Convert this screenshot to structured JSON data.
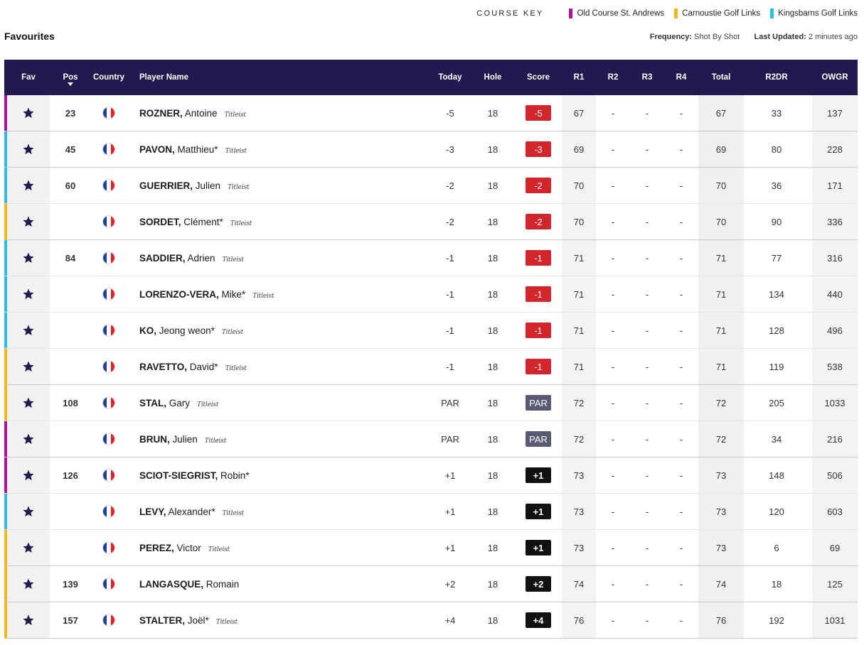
{
  "course_key": {
    "title": "COURSE KEY",
    "items": [
      {
        "label": "Old Course St. Andrews",
        "color": "#b3139b"
      },
      {
        "label": "Carnoustie Golf Links",
        "color": "#f3b51b"
      },
      {
        "label": "Kingsbarns Golf Links",
        "color": "#2bbde8"
      }
    ]
  },
  "page_title": "Favourites",
  "frequency": {
    "label": "Frequency:",
    "value": "Shot By Shot"
  },
  "last_updated": {
    "label": "Last Updated:",
    "value": "2 minutes ago"
  },
  "columns": {
    "fav": "Fav",
    "pos": "Pos",
    "country": "Country",
    "player": "Player Name",
    "today": "Today",
    "hole": "Hole",
    "score": "Score",
    "r1": "R1",
    "r2": "R2",
    "r3": "R3",
    "r4": "R4",
    "total": "Total",
    "r2dr": "R2DR",
    "owgr": "OWGR"
  },
  "rows": [
    {
      "pos": "23",
      "surname": "ROZNER,",
      "first": "Antoine",
      "sponsor": "Titleist",
      "course": 0,
      "today": "-5",
      "hole": "18",
      "score": "-5",
      "r1": "67",
      "r2": "-",
      "r3": "-",
      "r4": "-",
      "total": "67",
      "r2dr": "33",
      "owgr": "137",
      "grp": true
    },
    {
      "pos": "45",
      "surname": "PAVON,",
      "first": "Matthieu*",
      "sponsor": "Titleist",
      "course": 2,
      "today": "-3",
      "hole": "18",
      "score": "-3",
      "r1": "69",
      "r2": "-",
      "r3": "-",
      "r4": "-",
      "total": "69",
      "r2dr": "80",
      "owgr": "228",
      "grp": true
    },
    {
      "pos": "60",
      "surname": "GUERRIER,",
      "first": "Julien",
      "sponsor": "Titleist",
      "course": 2,
      "today": "-2",
      "hole": "18",
      "score": "-2",
      "r1": "70",
      "r2": "-",
      "r3": "-",
      "r4": "-",
      "total": "70",
      "r2dr": "36",
      "owgr": "171",
      "grp": false
    },
    {
      "pos": "",
      "surname": "SORDET,",
      "first": "Clément*",
      "sponsor": "Titleist",
      "course": 1,
      "today": "-2",
      "hole": "18",
      "score": "-2",
      "r1": "70",
      "r2": "-",
      "r3": "-",
      "r4": "-",
      "total": "70",
      "r2dr": "90",
      "owgr": "336",
      "grp": true
    },
    {
      "pos": "84",
      "surname": "SADDIER,",
      "first": "Adrien",
      "sponsor": "Titleist",
      "course": 2,
      "today": "-1",
      "hole": "18",
      "score": "-1",
      "r1": "71",
      "r2": "-",
      "r3": "-",
      "r4": "-",
      "total": "71",
      "r2dr": "77",
      "owgr": "316",
      "grp": false
    },
    {
      "pos": "",
      "surname": "LORENZO-VERA,",
      "first": "Mike*",
      "sponsor": "Titleist",
      "course": 2,
      "today": "-1",
      "hole": "18",
      "score": "-1",
      "r1": "71",
      "r2": "-",
      "r3": "-",
      "r4": "-",
      "total": "71",
      "r2dr": "134",
      "owgr": "440",
      "grp": false
    },
    {
      "pos": "",
      "surname": "KO,",
      "first": "Jeong weon*",
      "sponsor": "Titleist",
      "course": 2,
      "today": "-1",
      "hole": "18",
      "score": "-1",
      "r1": "71",
      "r2": "-",
      "r3": "-",
      "r4": "-",
      "total": "71",
      "r2dr": "128",
      "owgr": "496",
      "grp": false
    },
    {
      "pos": "",
      "surname": "RAVETTO,",
      "first": "David*",
      "sponsor": "Titleist",
      "course": 1,
      "today": "-1",
      "hole": "18",
      "score": "-1",
      "r1": "71",
      "r2": "-",
      "r3": "-",
      "r4": "-",
      "total": "71",
      "r2dr": "119",
      "owgr": "538",
      "grp": true
    },
    {
      "pos": "108",
      "surname": "STAL,",
      "first": "Gary",
      "sponsor": "Titleist",
      "course": 1,
      "today": "PAR",
      "hole": "18",
      "score": "PAR",
      "r1": "72",
      "r2": "-",
      "r3": "-",
      "r4": "-",
      "total": "72",
      "r2dr": "205",
      "owgr": "1033",
      "grp": false
    },
    {
      "pos": "",
      "surname": "BRUN,",
      "first": "Julien",
      "sponsor": "Titleist",
      "course": 0,
      "today": "PAR",
      "hole": "18",
      "score": "PAR",
      "r1": "72",
      "r2": "-",
      "r3": "-",
      "r4": "-",
      "total": "72",
      "r2dr": "34",
      "owgr": "216",
      "grp": true
    },
    {
      "pos": "126",
      "surname": "SCIOT-SIEGRIST,",
      "first": "Robin*",
      "sponsor": "",
      "course": 0,
      "today": "+1",
      "hole": "18",
      "score": "+1",
      "r1": "73",
      "r2": "-",
      "r3": "-",
      "r4": "-",
      "total": "73",
      "r2dr": "148",
      "owgr": "506",
      "grp": false
    },
    {
      "pos": "",
      "surname": "LEVY,",
      "first": "Alexander*",
      "sponsor": "Titleist",
      "course": 2,
      "today": "+1",
      "hole": "18",
      "score": "+1",
      "r1": "73",
      "r2": "-",
      "r3": "-",
      "r4": "-",
      "total": "73",
      "r2dr": "120",
      "owgr": "603",
      "grp": false
    },
    {
      "pos": "",
      "surname": "PEREZ,",
      "first": "Victor",
      "sponsor": "Titleist",
      "course": 1,
      "today": "+1",
      "hole": "18",
      "score": "+1",
      "r1": "73",
      "r2": "-",
      "r3": "-",
      "r4": "-",
      "total": "73",
      "r2dr": "6",
      "owgr": "69",
      "grp": true
    },
    {
      "pos": "139",
      "surname": "LANGASQUE,",
      "first": "Romain",
      "sponsor": "",
      "course": 1,
      "today": "+2",
      "hole": "18",
      "score": "+2",
      "r1": "74",
      "r2": "-",
      "r3": "-",
      "r4": "-",
      "total": "74",
      "r2dr": "18",
      "owgr": "125",
      "grp": true
    },
    {
      "pos": "157",
      "surname": "STALTER,",
      "first": "Joël*",
      "sponsor": "Titleist",
      "course": 1,
      "today": "+4",
      "hole": "18",
      "score": "+4",
      "r1": "76",
      "r2": "-",
      "r3": "-",
      "r4": "-",
      "total": "76",
      "r2dr": "192",
      "owgr": "1031",
      "grp": true
    }
  ],
  "flag_colors": [
    "#1f3f99",
    "#ffffff",
    "#e2202a"
  ],
  "icons": {
    "fav": "star-icon",
    "country": "france-flag-icon",
    "sort": "sort-down-icon"
  }
}
